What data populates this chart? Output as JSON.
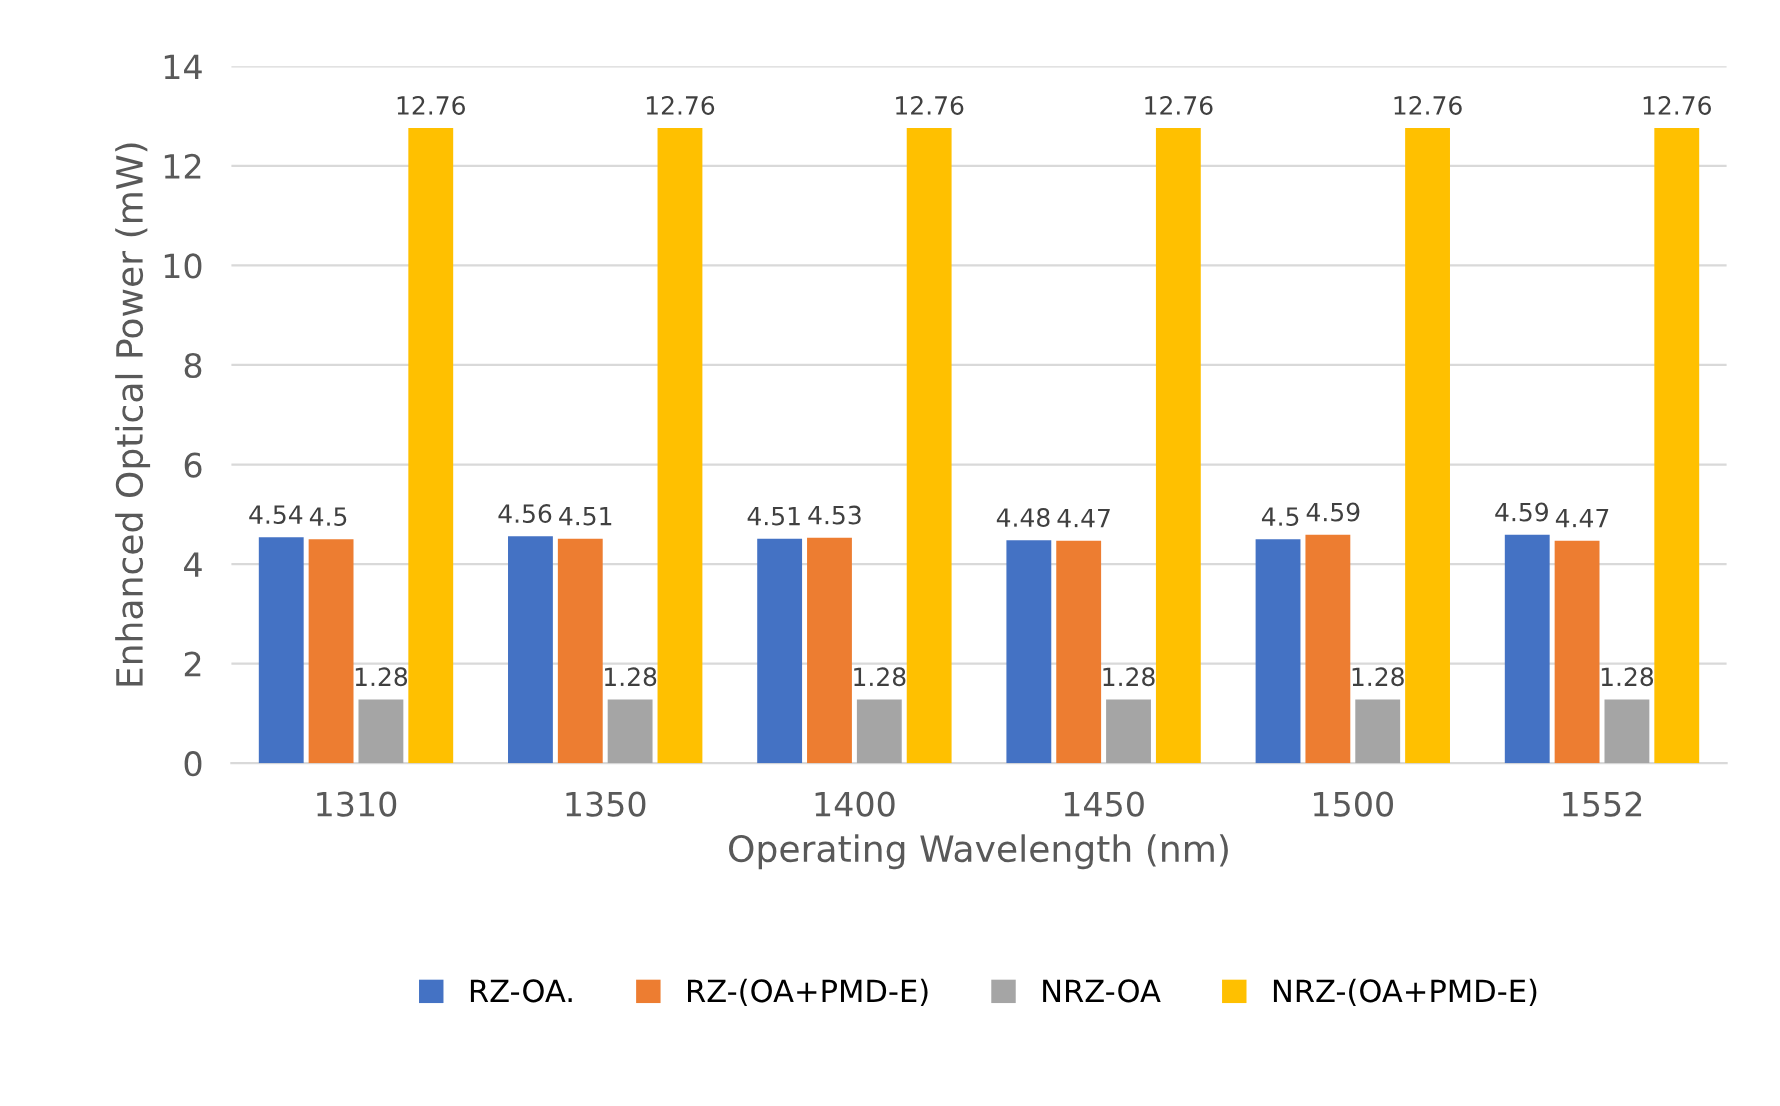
{
  "chart_data": {
    "type": "bar",
    "xlabel": "Operating Wavelength (nm)",
    "ylabel": "Enhanced Optical Power (mW)",
    "categories": [
      "1310",
      "1350",
      "1400",
      "1450",
      "1500",
      "1552"
    ],
    "series": [
      {
        "name": "RZ-OA.",
        "color": "#4472c4",
        "values": [
          4.54,
          4.56,
          4.51,
          4.48,
          4.5,
          4.59
        ]
      },
      {
        "name": "RZ-(OA+PMD-E)",
        "color": "#ed7d31",
        "values": [
          4.5,
          4.51,
          4.53,
          4.47,
          4.59,
          4.47
        ]
      },
      {
        "name": "NRZ-OA",
        "color": "#a5a5a5",
        "values": [
          1.28,
          1.28,
          1.28,
          1.28,
          1.28,
          1.28
        ]
      },
      {
        "name": "NRZ-(OA+PMD-E)",
        "color": "#ffc000",
        "values": [
          12.76,
          12.76,
          12.76,
          12.76,
          12.76,
          12.76
        ]
      }
    ],
    "ylim": [
      0,
      14
    ],
    "yticks": [
      0,
      2,
      4,
      6,
      8,
      10,
      12,
      14
    ],
    "grid": "y",
    "legend": "bottom",
    "data_labels": true
  }
}
